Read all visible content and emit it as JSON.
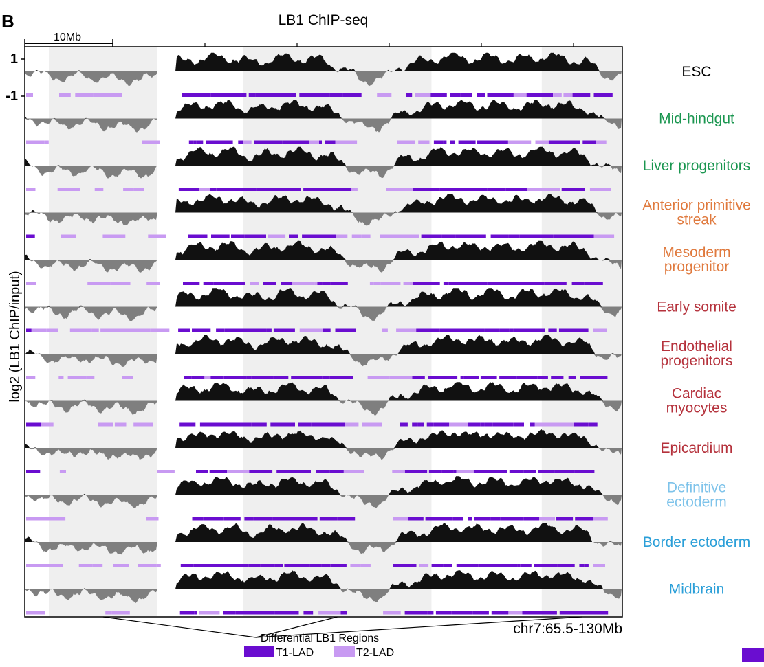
{
  "figure": {
    "panel_letter": "B",
    "title": "LB1 ChIP-seq",
    "scale_bar_label": "10Mb",
    "ylabel": "log2 (LB1 ChIP/input)",
    "ytick_top": "1",
    "ytick_bottom": "-1",
    "coordinate_label": "chr7:65.5-130Mb",
    "diff_regions_label": "Differential LB1 Regions",
    "legend": [
      {
        "label": "T1-LAD",
        "color": "#6a0dd0"
      },
      {
        "label": "T2-LAD",
        "color": "#c89af2"
      }
    ]
  },
  "colors": {
    "positive_fill": "#111111",
    "negative_fill": "#7f7f7f",
    "shade": "#efefef",
    "t1": "#6a0dd0",
    "t2": "#c89af2"
  },
  "chart_data": {
    "type": "area",
    "title": "LB1 ChIP-seq",
    "ylabel": "log2 (LB1 ChIP/input)",
    "ylim": [
      -1,
      1
    ],
    "x_label": "chr7:65.5-130Mb",
    "x_range_mb": [
      65.5,
      130
    ],
    "lad_legend": [
      "T1-LAD",
      "T2-LAD"
    ],
    "differential_regions_mb": [
      [
        68.1,
        79.8
      ],
      [
        89.1,
        109.4
      ],
      [
        121.3,
        132.1
      ]
    ],
    "base_profile": {
      "x_mb": [
        65.5,
        68,
        70,
        72,
        74,
        76,
        78,
        80,
        81,
        82,
        84,
        86,
        88,
        90,
        92,
        94,
        96,
        98,
        100,
        102,
        104,
        106,
        108,
        110,
        112,
        114,
        116,
        118,
        120,
        122,
        124,
        126,
        128,
        130
      ],
      "y": [
        0.05,
        -0.3,
        -0.35,
        -0.25,
        -0.4,
        -0.45,
        -0.5,
        -0.2,
        0.1,
        0.55,
        0.7,
        0.8,
        0.75,
        0.5,
        0.65,
        0.8,
        0.7,
        0.6,
        0.1,
        -0.5,
        -0.45,
        0.3,
        0.5,
        0.75,
        0.85,
        0.7,
        0.8,
        0.65,
        0.75,
        0.85,
        0.7,
        0.6,
        -0.2,
        -0.3
      ]
    },
    "series": [
      {
        "name": "ESC",
        "color": "#000000"
      },
      {
        "name": "Mid-hindgut",
        "color": "#1a9650"
      },
      {
        "name": "Liver progenitors",
        "color": "#1a9650"
      },
      {
        "name": "Anterior primitive streak",
        "color": "#e07a3e"
      },
      {
        "name": "Mesoderm progenitor",
        "color": "#e07a3e"
      },
      {
        "name": "Early somite",
        "color": "#b5323c"
      },
      {
        "name": "Endothelial progenitors",
        "color": "#b5323c"
      },
      {
        "name": "Cardiac myocytes",
        "color": "#b5323c"
      },
      {
        "name": "Epicardium",
        "color": "#b5323c"
      },
      {
        "name": "Definitive ectoderm",
        "color": "#7ec3ea"
      },
      {
        "name": "Border ectoderm",
        "color": "#2b9fd8"
      },
      {
        "name": "Midbrain",
        "color": "#2b9fd8"
      }
    ]
  },
  "tracks": [
    {
      "label1": "ESC",
      "label2": "",
      "color": "#000000"
    },
    {
      "label1": "Mid-hindgut",
      "label2": "",
      "color": "#1a9650"
    },
    {
      "label1": "Liver progenitors",
      "label2": "",
      "color": "#1a9650"
    },
    {
      "label1": "Anterior primitive",
      "label2": "streak",
      "color": "#e07a3e"
    },
    {
      "label1": "Mesoderm",
      "label2": "progenitor",
      "color": "#e07a3e"
    },
    {
      "label1": "Early somite",
      "label2": "",
      "color": "#b5323c"
    },
    {
      "label1": "Endothelial",
      "label2": "progenitors",
      "color": "#b5323c"
    },
    {
      "label1": "Cardiac",
      "label2": "myocytes",
      "color": "#b5323c"
    },
    {
      "label1": "Epicardium",
      "label2": "",
      "color": "#b5323c"
    },
    {
      "label1": "Definitive",
      "label2": "ectoderm",
      "color": "#7ec3ea"
    },
    {
      "label1": "Border ectoderm",
      "label2": "",
      "color": "#2b9fd8"
    },
    {
      "label1": "Midbrain",
      "label2": "",
      "color": "#2b9fd8"
    }
  ]
}
